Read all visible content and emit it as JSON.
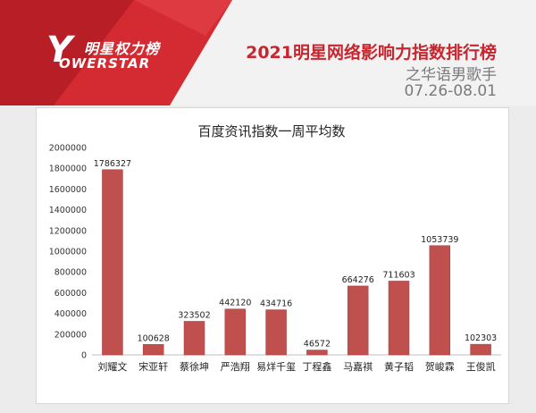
{
  "header": {
    "logo_text_top": "明星权力榜",
    "logo_letter": "Y",
    "logo_text_brand": "OWERSTAR",
    "title": "2021明星网络影响力指数排行榜",
    "subtitle": "之华语男歌手",
    "date_range": "07.26-08.01"
  },
  "colors": {
    "accent_red": "#c8262e",
    "bar_fill": "#c0504d",
    "bar_stroke": "#a94442"
  },
  "chart_data": {
    "type": "bar",
    "title": "百度资讯指数一周平均数",
    "categories": [
      "刘耀文",
      "宋亚轩",
      "蔡徐坤",
      "严浩翔",
      "易烊千玺",
      "丁程鑫",
      "马嘉祺",
      "黄子韬",
      "贺峻霖",
      "王俊凯"
    ],
    "values": [
      1786327,
      100628,
      323502,
      442120,
      434716,
      46572,
      664276,
      711603,
      1053739,
      102303
    ],
    "ylim": [
      0,
      2000000
    ],
    "yticks": [
      0,
      200000,
      400000,
      600000,
      800000,
      1000000,
      1200000,
      1400000,
      1600000,
      1800000,
      2000000
    ],
    "xlabel": "",
    "ylabel": "",
    "grid": false,
    "data_labels": true
  }
}
